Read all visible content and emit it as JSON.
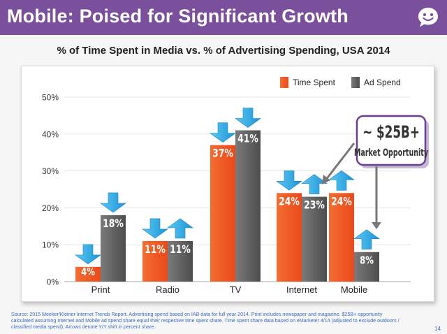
{
  "header": {
    "title": "Mobile: Poised for Significant Growth",
    "logo_icon": "speech-bubble-smiley-icon"
  },
  "chart_title": "% of Time Spent in Media vs. % of Advertising Spending, USA 2014",
  "chart_data": {
    "type": "bar",
    "title": "% of Time Spent in Media vs. % of Advertising Spending, USA 2014",
    "categories": [
      "Print",
      "Radio",
      "TV",
      "Internet",
      "Mobile"
    ],
    "series": [
      {
        "name": "Time Spent",
        "values": [
          4,
          11,
          37,
          24,
          24
        ],
        "labels": [
          "4%",
          "11%",
          "37%",
          "24%",
          "24%"
        ],
        "arrows": [
          "down",
          "down",
          "down",
          "down",
          "up"
        ]
      },
      {
        "name": "Ad Spend",
        "values": [
          18,
          11,
          41,
          23,
          8
        ],
        "labels": [
          "18%",
          "11%",
          "41%",
          "23%",
          "8%"
        ],
        "arrows": [
          "down",
          "up",
          "down",
          "up",
          "up"
        ]
      }
    ],
    "ylim": [
      0,
      50
    ],
    "yticks": [
      "0%",
      "10%",
      "20%",
      "30%",
      "40%",
      "50%"
    ],
    "xlabel": "",
    "ylabel": "",
    "legend_position": "top-right",
    "colors": {
      "time_spent": "#f26a2e",
      "ad_spend": "#5f5f5f",
      "arrow": "#29a3e1"
    },
    "callout": {
      "line1": "~ $25B+",
      "line2": "Market Opportunity"
    }
  },
  "footnote": "Source: 2015 Meeker/Kleiner Internet Trends Report. Advertising spend based on IAB data for full year 2014. Print includes newspaper and magazine. $25B+ opportunity calculated assuming Internet and Mobile ad spend share equal their respective time spent share. Time spent share data based on eMarketer 4/14 (adjusted to exclude outdoors / classified media spend). Arrows denote Y/Y shift in percent share.",
  "page_number": "14",
  "colors": {
    "header_bg": "#7a4f9c",
    "footnote": "#3a6cc0"
  }
}
